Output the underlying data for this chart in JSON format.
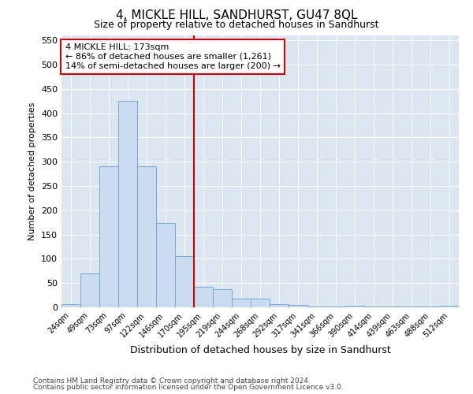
{
  "title": "4, MICKLE HILL, SANDHURST, GU47 8QL",
  "subtitle": "Size of property relative to detached houses in Sandhurst",
  "xlabel": "Distribution of detached houses by size in Sandhurst",
  "ylabel": "Number of detached properties",
  "categories": [
    "24sqm",
    "49sqm",
    "73sqm",
    "97sqm",
    "122sqm",
    "146sqm",
    "170sqm",
    "195sqm",
    "219sqm",
    "244sqm",
    "268sqm",
    "292sqm",
    "317sqm",
    "341sqm",
    "366sqm",
    "390sqm",
    "414sqm",
    "439sqm",
    "463sqm",
    "488sqm",
    "512sqm"
  ],
  "values": [
    7,
    70,
    290,
    425,
    290,
    173,
    105,
    42,
    38,
    18,
    18,
    7,
    5,
    2,
    1,
    3,
    2,
    1,
    1,
    1,
    3
  ],
  "bar_facecolor": "#ccdcf0",
  "bar_edgecolor": "#7bafd4",
  "vline_x": 6.5,
  "vline_color": "#cc0000",
  "annotation_line1": "4 MICKLE HILL: 173sqm",
  "annotation_line2": "← 86% of detached houses are smaller (1,261)",
  "annotation_line3": "14% of semi-detached houses are larger (200) →",
  "annotation_box_facecolor": "#ffffff",
  "annotation_box_edgecolor": "#cc0000",
  "ylim": [
    0,
    560
  ],
  "yticks": [
    0,
    50,
    100,
    150,
    200,
    250,
    300,
    350,
    400,
    450,
    500,
    550
  ],
  "grid_color": "#ffffff",
  "plot_bg_color": "#dce6f0",
  "footer_line1": "Contains HM Land Registry data © Crown copyright and database right 2024.",
  "footer_line2": "Contains public sector information licensed under the Open Government Licence v3.0."
}
